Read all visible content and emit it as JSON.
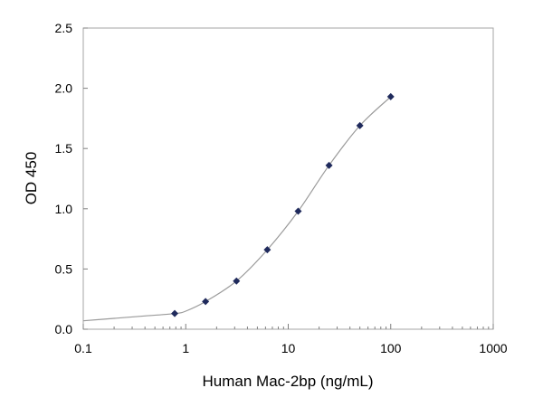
{
  "chart_data": {
    "type": "scatter",
    "title": "",
    "xlabel": "Human Mac-2bp (ng/mL)",
    "ylabel": "OD 450",
    "xscale": "log",
    "xlim": [
      0.1,
      1000
    ],
    "ylim": [
      0,
      2.5
    ],
    "x_ticks": [
      0.1,
      1,
      10,
      100,
      1000
    ],
    "x_tick_labels": [
      "0.1",
      "1",
      "10",
      "100",
      "1000"
    ],
    "y_ticks": [
      0,
      0.5,
      1.0,
      1.5,
      2.0,
      2.5
    ],
    "y_tick_labels": [
      "0.0",
      "0.5",
      "1.0",
      "1.5",
      "2.0",
      "2.5"
    ],
    "grid": false,
    "legend": "none",
    "series": [
      {
        "marker": "diamond",
        "color": "#1f2a5c",
        "x": [
          0.78,
          1.56,
          3.125,
          6.25,
          12.5,
          25,
          50,
          100
        ],
        "y": [
          0.13,
          0.23,
          0.4,
          0.66,
          0.98,
          1.36,
          1.69,
          1.93
        ]
      }
    ],
    "fit_curve": {
      "color": "#9a9a9a",
      "x": [
        0.1,
        0.2,
        0.4,
        0.78,
        1.0,
        1.56,
        3.125,
        6.25,
        12.5,
        25,
        50,
        100
      ],
      "y": [
        0.07,
        0.09,
        0.11,
        0.13,
        0.15,
        0.23,
        0.4,
        0.66,
        0.98,
        1.36,
        1.69,
        1.93
      ]
    }
  }
}
